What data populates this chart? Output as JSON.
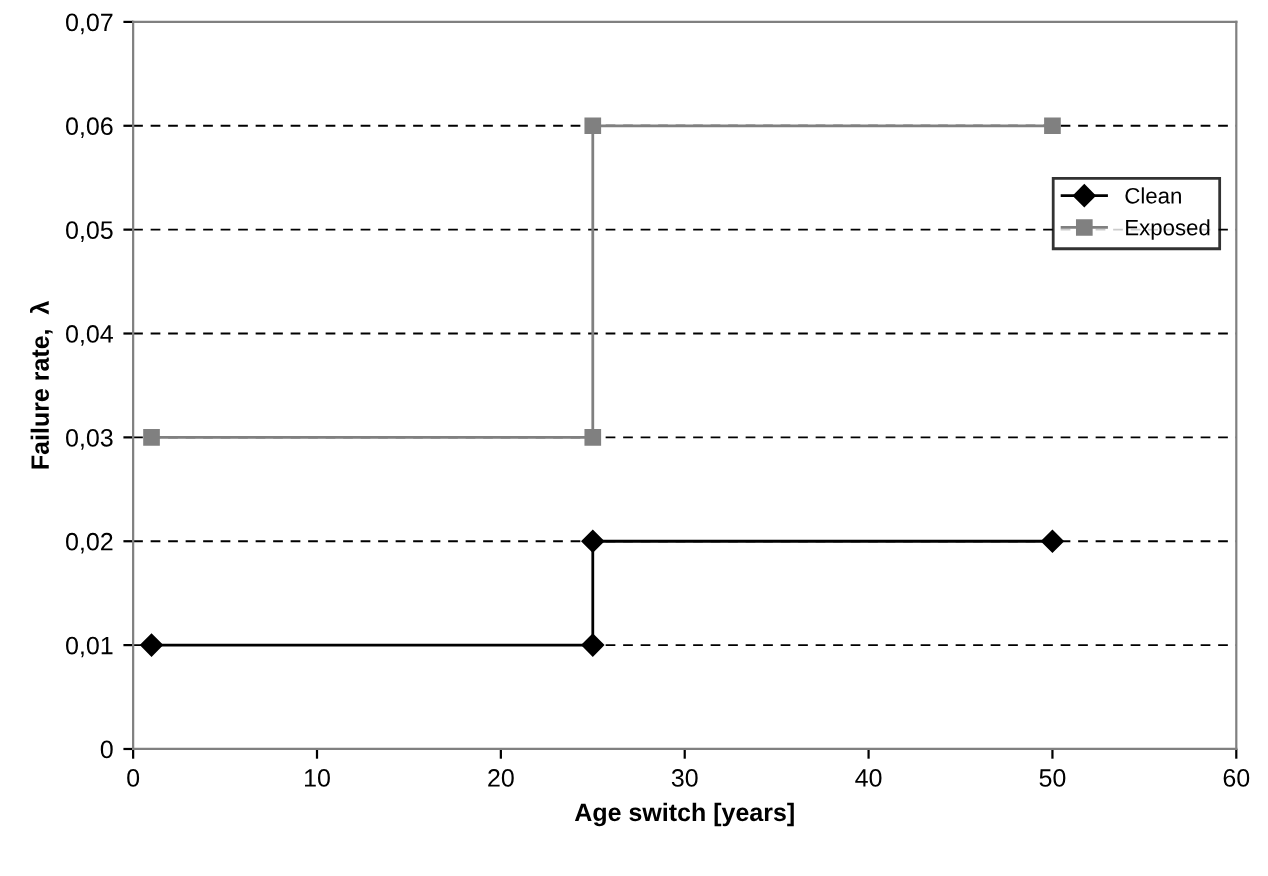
{
  "chart_data": {
    "type": "line",
    "xlabel": "Age switch [years]",
    "ylabel": "Failure rate,  λ",
    "series": [
      {
        "name": "Clean",
        "color": "#000000",
        "marker": "diamond",
        "x": [
          1,
          25,
          25,
          50
        ],
        "values": [
          0.01,
          0.01,
          0.02,
          0.02
        ]
      },
      {
        "name": "Exposed",
        "color": "#808080",
        "marker": "square",
        "x": [
          1,
          25,
          25,
          50
        ],
        "values": [
          0.03,
          0.03,
          0.06,
          0.06
        ]
      }
    ],
    "xlim": [
      0,
      60
    ],
    "xticks": [
      0,
      10,
      20,
      30,
      40,
      50,
      60
    ],
    "ylim": [
      0,
      0.07
    ],
    "yticks": [
      0,
      {
        "value": 0.01,
        "label": "0,01"
      },
      {
        "value": 0.02,
        "label": "0,02"
      },
      {
        "value": 0.03,
        "label": "0,03"
      },
      {
        "value": 0.04,
        "label": "0,04"
      },
      {
        "value": 0.05,
        "label": "0,05"
      },
      {
        "value": 0.06,
        "label": "0,06"
      },
      {
        "value": 0.07,
        "label": "0,07"
      }
    ],
    "grid": "y",
    "legend": "top right",
    "line_style": "solid"
  }
}
